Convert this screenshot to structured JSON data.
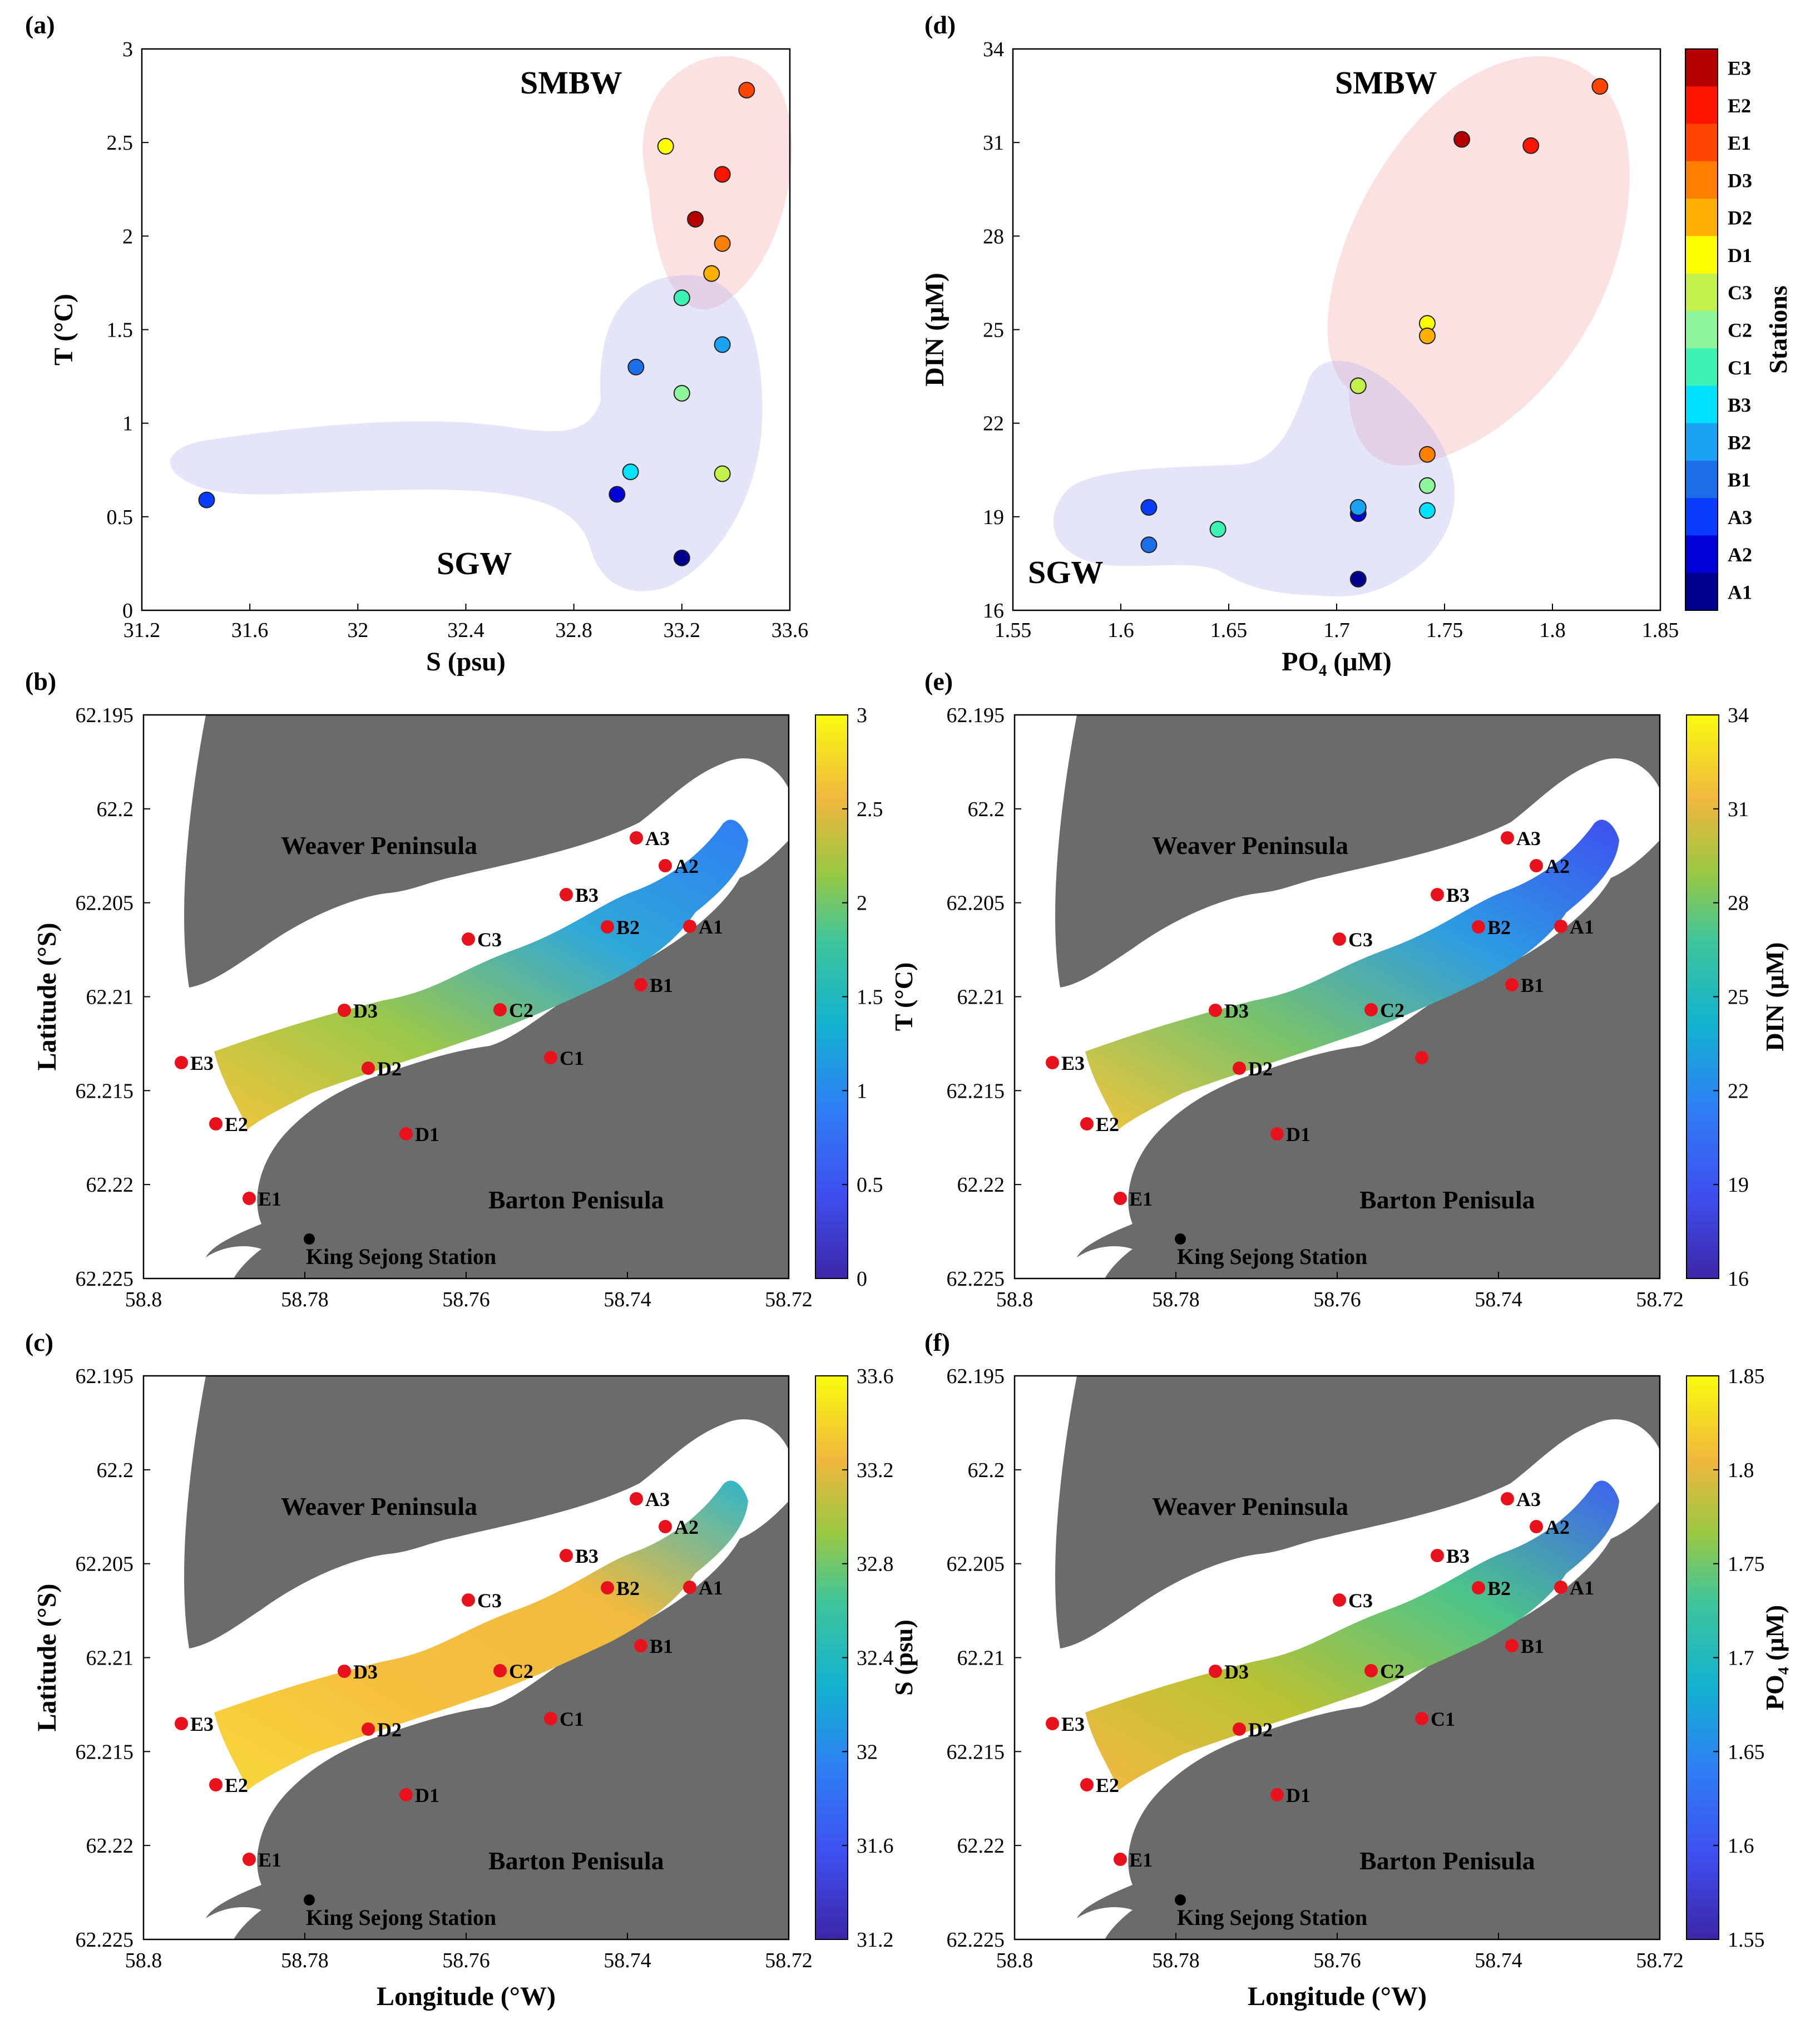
{
  "chart_data": [
    {
      "panel": "(a)",
      "type": "scatter",
      "xlabel": "S (psu)",
      "ylabel": "T (°C)",
      "xlim": [
        31.2,
        33.6
      ],
      "ylim": [
        0,
        3
      ],
      "xticks": [
        "31.2",
        "31.6",
        "32",
        "32.4",
        "32.8",
        "33.2",
        "33.6"
      ],
      "yticks": [
        "0",
        "0.5",
        "1",
        "1.5",
        "2",
        "2.5",
        "3"
      ],
      "groups": [
        "SMBW",
        "SGW"
      ],
      "points": [
        {
          "station": "A1",
          "x": 33.2,
          "y": 0.28
        },
        {
          "station": "A2",
          "x": 32.96,
          "y": 0.62
        },
        {
          "station": "A3",
          "x": 31.44,
          "y": 0.59
        },
        {
          "station": "B1",
          "x": 33.03,
          "y": 1.3
        },
        {
          "station": "B2",
          "x": 33.35,
          "y": 1.42
        },
        {
          "station": "B3",
          "x": 33.01,
          "y": 0.74
        },
        {
          "station": "C1",
          "x": 33.2,
          "y": 1.67
        },
        {
          "station": "C2",
          "x": 33.2,
          "y": 1.16
        },
        {
          "station": "C3",
          "x": 33.35,
          "y": 0.73
        },
        {
          "station": "D1",
          "x": 33.14,
          "y": 2.48
        },
        {
          "station": "D2",
          "x": 33.31,
          "y": 1.8
        },
        {
          "station": "D3",
          "x": 33.35,
          "y": 1.96
        },
        {
          "station": "E1",
          "x": 33.44,
          "y": 2.78
        },
        {
          "station": "E2",
          "x": 33.35,
          "y": 2.33
        },
        {
          "station": "E3",
          "x": 33.25,
          "y": 2.09
        }
      ]
    },
    {
      "panel": "(d)",
      "type": "scatter",
      "xlabel": "PO₄ (μM)",
      "ylabel": "DIN (μM)",
      "xlim": [
        1.55,
        1.85
      ],
      "ylim": [
        16,
        34
      ],
      "xticks": [
        "1.55",
        "1.6",
        "1.65",
        "1.7",
        "1.75",
        "1.8",
        "1.85"
      ],
      "yticks": [
        "16",
        "19",
        "22",
        "25",
        "28",
        "31",
        "34"
      ],
      "groups": [
        "SMBW",
        "SGW"
      ],
      "colorbar": {
        "title": "Stations",
        "labels": [
          "E3",
          "E2",
          "E1",
          "D3",
          "D2",
          "D1",
          "C3",
          "C2",
          "C1",
          "B3",
          "B2",
          "B1",
          "A3",
          "A2",
          "A1"
        ]
      },
      "points": [
        {
          "station": "A1",
          "x": 1.71,
          "y": 17.0
        },
        {
          "station": "A2",
          "x": 1.71,
          "y": 19.1
        },
        {
          "station": "A3",
          "x": 1.613,
          "y": 19.3
        },
        {
          "station": "B1",
          "x": 1.613,
          "y": 18.1
        },
        {
          "station": "B2",
          "x": 1.71,
          "y": 19.3
        },
        {
          "station": "B3",
          "x": 1.742,
          "y": 19.2
        },
        {
          "station": "C1",
          "x": 1.645,
          "y": 18.6
        },
        {
          "station": "C2",
          "x": 1.742,
          "y": 20.0
        },
        {
          "station": "C3",
          "x": 1.71,
          "y": 23.2
        },
        {
          "station": "D1",
          "x": 1.742,
          "y": 25.2
        },
        {
          "station": "D2",
          "x": 1.742,
          "y": 24.8
        },
        {
          "station": "D3",
          "x": 1.742,
          "y": 21.0
        },
        {
          "station": "E1",
          "x": 1.822,
          "y": 32.8
        },
        {
          "station": "E2",
          "x": 1.79,
          "y": 30.9
        },
        {
          "station": "E3",
          "x": 1.758,
          "y": 31.1
        }
      ]
    },
    {
      "panel": "(b)",
      "type": "heatmap",
      "variable": "T (°C)",
      "colorbar_ticks": [
        "0",
        "0.5",
        "1",
        "1.5",
        "2",
        "2.5",
        "3"
      ],
      "hide_station_labels": []
    },
    {
      "panel": "(e)",
      "type": "heatmap",
      "variable": "DIN (μM)",
      "colorbar_ticks": [
        "16",
        "19",
        "22",
        "25",
        "28",
        "31",
        "34"
      ],
      "hide_station_labels": [
        "C1"
      ]
    },
    {
      "panel": "(c)",
      "type": "heatmap",
      "variable": "S (psu)",
      "colorbar_ticks": [
        "31.2",
        "31.6",
        "32",
        "32.4",
        "32.8",
        "33.2",
        "33.6"
      ],
      "hide_station_labels": []
    },
    {
      "panel": "(f)",
      "type": "heatmap",
      "variable": "PO₄ (μM)",
      "colorbar_ticks": [
        "1.55",
        "1.6",
        "1.65",
        "1.7",
        "1.75",
        "1.8",
        "1.85"
      ],
      "hide_station_labels": []
    }
  ],
  "map": {
    "xticks": [
      "58.8",
      "58.78",
      "58.76",
      "58.74",
      "58.72"
    ],
    "yticks": [
      "62.195",
      "62.2",
      "62.205",
      "62.21",
      "62.215",
      "62.22",
      "62.225"
    ],
    "xlabel": "Longitude (°W)",
    "ylabel": "Latitude (°S)",
    "land_labels": {
      "north": "Weaver Peninsula",
      "south": "Barton Penisula",
      "base": "King Sejong Station"
    },
    "stations": [
      "A1",
      "A2",
      "A3",
      "B1",
      "B2",
      "B3",
      "C1",
      "C2",
      "C3",
      "D1",
      "D2",
      "D3",
      "E1",
      "E2",
      "E3"
    ]
  },
  "colors": {
    "parula_low": "#3d26a8",
    "parula_mid": "#12b2d0",
    "parula_high": "#f9fb0e",
    "land": "#6b6b6b",
    "station_dot": "#e8121c"
  }
}
